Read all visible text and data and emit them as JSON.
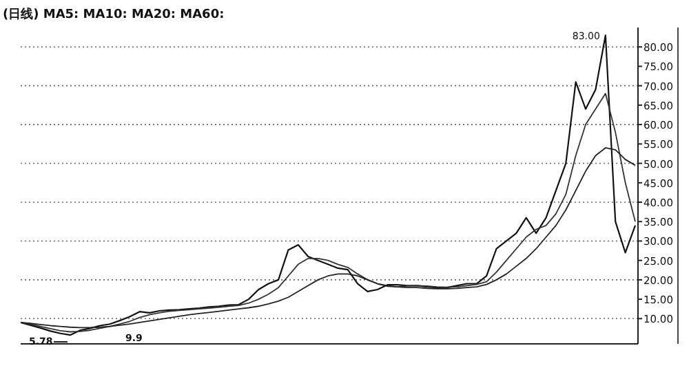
{
  "chart_data": {
    "type": "line",
    "title": "(日线) MA5: MA10: MA20: MA60:",
    "categories": [
      null,
      null,
      null,
      null,
      null,
      null,
      null,
      null,
      null,
      null,
      null,
      null,
      null,
      null,
      null,
      null,
      null,
      null,
      null,
      null,
      null,
      null,
      null,
      null,
      null,
      null,
      null,
      null,
      null,
      null,
      null,
      null,
      null,
      null,
      null,
      null,
      null,
      null,
      null,
      null,
      null,
      null,
      null,
      null,
      null,
      null,
      null,
      null,
      null,
      null,
      null,
      null,
      null,
      null,
      null,
      null,
      null,
      null,
      null,
      null,
      null,
      null,
      null
    ],
    "series": [
      {
        "color": "#111111",
        "values": [
          9,
          8.3,
          7.6,
          6.8,
          6.2,
          5.78,
          7,
          7.5,
          8.2,
          8.6,
          9.5,
          10.5,
          11.8,
          11.5,
          12,
          12.2,
          12.3,
          12.5,
          12.7,
          13,
          13.2,
          13.5,
          13.6,
          15,
          17.5,
          19,
          20,
          27.7,
          29,
          26,
          25,
          24,
          23,
          22.6,
          19,
          17,
          17.5,
          18.7,
          18.7,
          18.5,
          18.5,
          18.2,
          18,
          18,
          18.5,
          19,
          19,
          21,
          28,
          30,
          32,
          36,
          32,
          36,
          43,
          50,
          71,
          64,
          69,
          83,
          35,
          27,
          34
        ]
      },
      {
        "color": "#333333",
        "values": [
          9,
          8.6,
          8,
          7.4,
          6.9,
          6.6,
          6.7,
          7,
          7.5,
          8,
          8.6,
          9.3,
          10.3,
          11,
          11.5,
          11.9,
          12.1,
          12.3,
          12.5,
          12.7,
          12.9,
          13.2,
          13.4,
          14,
          15,
          16.3,
          18,
          21,
          24,
          25.5,
          25.5,
          25,
          24,
          23.2,
          21.5,
          20,
          19,
          18.3,
          18.2,
          18.4,
          18.5,
          18.4,
          18.2,
          18.1,
          18.2,
          18.5,
          18.8,
          19.5,
          22,
          25,
          28,
          31,
          33,
          34,
          37,
          42,
          52,
          60,
          64,
          68,
          58,
          45,
          35
        ]
      },
      {
        "color": "#222222",
        "values": [
          9,
          8.8,
          8.5,
          8.2,
          8,
          7.8,
          7.7,
          7.7,
          7.8,
          8,
          8.3,
          8.6,
          9,
          9.4,
          9.8,
          10.2,
          10.6,
          11,
          11.3,
          11.6,
          11.9,
          12.2,
          12.5,
          12.8,
          13.2,
          13.8,
          14.5,
          15.5,
          17,
          18.5,
          20,
          21,
          21.5,
          21.5,
          21,
          20,
          19,
          18.5,
          18.2,
          18,
          18,
          17.8,
          17.7,
          17.7,
          17.8,
          18,
          18.2,
          18.8,
          20,
          21.5,
          23.5,
          25.5,
          28,
          31,
          34,
          38,
          43,
          48,
          52,
          54,
          53.5,
          51,
          49.5
        ]
      }
    ],
    "ylim": [
      3.5,
      85
    ],
    "yticks": [
      {
        "value": 10,
        "label": "10.00"
      },
      {
        "value": 15,
        "label": "15.00"
      },
      {
        "value": 20,
        "label": "20.00"
      },
      {
        "value": 25,
        "label": "25.00"
      },
      {
        "value": 30,
        "label": "30.00"
      },
      {
        "value": 35,
        "label": "35.00"
      },
      {
        "value": 40,
        "label": "40.00"
      },
      {
        "value": 45,
        "label": "45.00"
      },
      {
        "value": 50,
        "label": "50.00"
      },
      {
        "value": 55,
        "label": "55.00"
      },
      {
        "value": 60,
        "label": "60.00"
      },
      {
        "value": 65,
        "label": "65.00"
      },
      {
        "value": 70,
        "label": "70.00"
      },
      {
        "value": 75,
        "label": "75.00"
      },
      {
        "value": 80,
        "label": "80.00"
      }
    ],
    "grid": "y",
    "tick_labels": "y",
    "annotations": [
      "83.00",
      "5.78",
      "9.9"
    ]
  }
}
